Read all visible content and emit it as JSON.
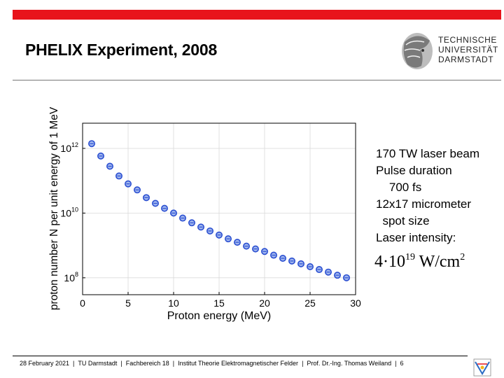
{
  "header": {
    "title": "PHELIX Experiment, 2008",
    "accent_color": "#e8141b"
  },
  "logo": {
    "icon": "athena-head-logo-icon",
    "lines": [
      "TECHNISCHE",
      "UNIVERSITÄT",
      "DARMSTADT"
    ]
  },
  "chart_data": {
    "type": "scatter",
    "xlabel": "Proton energy (MeV)",
    "ylabel": "proton number N per unit energy of 1 MeV",
    "xlim": [
      0,
      30
    ],
    "ylim": [
      30000000.0,
      6000000000000.0
    ],
    "y_scale": "log",
    "x_ticks": [
      0,
      5,
      10,
      15,
      20,
      25,
      30
    ],
    "y_ticks": [
      {
        "value": 1000000000000.0,
        "base": "10",
        "exp": "12"
      },
      {
        "value": 10000000000.0,
        "base": "10",
        "exp": "10"
      },
      {
        "value": 100000000.0,
        "base": "10",
        "exp": "8"
      }
    ],
    "grid": true,
    "marker_color": "#2b4fd1",
    "series": [
      {
        "x": [
          1,
          2,
          3,
          4,
          5,
          6,
          7,
          8,
          9,
          10,
          11,
          12,
          13,
          14,
          15,
          16,
          17,
          18,
          19,
          20,
          21,
          22,
          23,
          24,
          25,
          26,
          27,
          28,
          29
        ],
        "y": [
          1400000000000.0,
          580000000000.0,
          280000000000.0,
          140000000000.0,
          80000000000.0,
          52000000000.0,
          30000000000.0,
          20000000000.0,
          14000000000.0,
          10000000000.0,
          7000000000.0,
          5000000000.0,
          3700000000.0,
          2800000000.0,
          2100000000.0,
          1600000000.0,
          1250000000.0,
          950000000.0,
          780000000.0,
          650000000.0,
          500000000.0,
          400000000.0,
          330000000.0,
          270000000.0,
          220000000.0,
          180000000.0,
          150000000.0,
          120000000.0,
          100000000.0
        ]
      }
    ]
  },
  "info": {
    "lines": [
      "170 TW laser beam",
      "Pulse duration",
      "    700 fs",
      "12x17 micrometer",
      "  spot size",
      "Laser intensity:"
    ],
    "formula": {
      "coefficient": "4·10",
      "exponent": "19",
      "unit": "W/cm",
      "unit_exp": "2"
    }
  },
  "footer": {
    "items": [
      "28 February 2021",
      "TU Darmstadt",
      "Fachbereich 18",
      "Institut Theorie Elektromagnetischer Felder",
      "Prof. Dr.-Ing. Thomas Weiland",
      "6"
    ],
    "separator": "|",
    "corner_icon": "institute-logo-icon"
  }
}
